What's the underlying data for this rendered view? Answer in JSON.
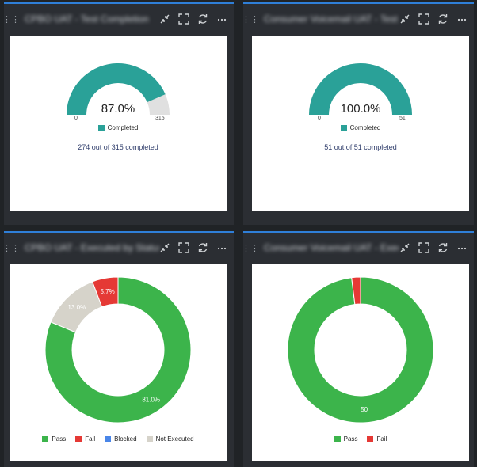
{
  "colors": {
    "accent_bar": "#2f7fd8",
    "teal": "#2aa198",
    "track": "#e0e0e0",
    "pass": "#3cb44b",
    "fail": "#e53935",
    "blocked": "#4a86e8",
    "not_executed": "#d6d3ca"
  },
  "panels": [
    {
      "title": "CPBO UAT - Test Completion",
      "toolbar": {
        "collapse_icon": "collapse-icon",
        "fullscreen_icon": "fullscreen-icon",
        "refresh_icon": "refresh-icon",
        "more_icon": "more-icon",
        "more_label": "···"
      },
      "gauge": {
        "value": 87.0,
        "percent_label": "87.0%",
        "min_label": "0",
        "max_label": "315",
        "legend": "Completed",
        "summary": "274 out of 315 completed"
      }
    },
    {
      "title": "Consumer Voicemail UAT - Test C...",
      "toolbar": {
        "more_label": "···"
      },
      "gauge": {
        "value": 100.0,
        "percent_label": "100.0%",
        "min_label": "0",
        "max_label": "51",
        "legend": "Completed",
        "summary": "51 out of 51 completed"
      }
    },
    {
      "title": "CPBO UAT - Executed by Status",
      "toolbar": {
        "more_label": "···"
      },
      "donut": {
        "slices": [
          {
            "name": "Pass",
            "value": 81.0,
            "label": "81.0%"
          },
          {
            "name": "Fail",
            "value": 5.7,
            "label": "5.7%"
          },
          {
            "name": "Blocked",
            "value": 0.0,
            "label": ""
          },
          {
            "name": "Not Executed",
            "value": 13.0,
            "label": "13.0%"
          }
        ],
        "legend": [
          "Pass",
          "Fail",
          "Blocked",
          "Not Executed"
        ]
      }
    },
    {
      "title": "Consumer Voicemail UAT - Execu...",
      "toolbar": {
        "more_label": "···"
      },
      "donut": {
        "slices": [
          {
            "name": "Pass",
            "value": 50,
            "label": "50"
          },
          {
            "name": "Fail",
            "value": 1,
            "label": ""
          }
        ],
        "legend": [
          "Pass",
          "Fail"
        ]
      }
    }
  ]
}
